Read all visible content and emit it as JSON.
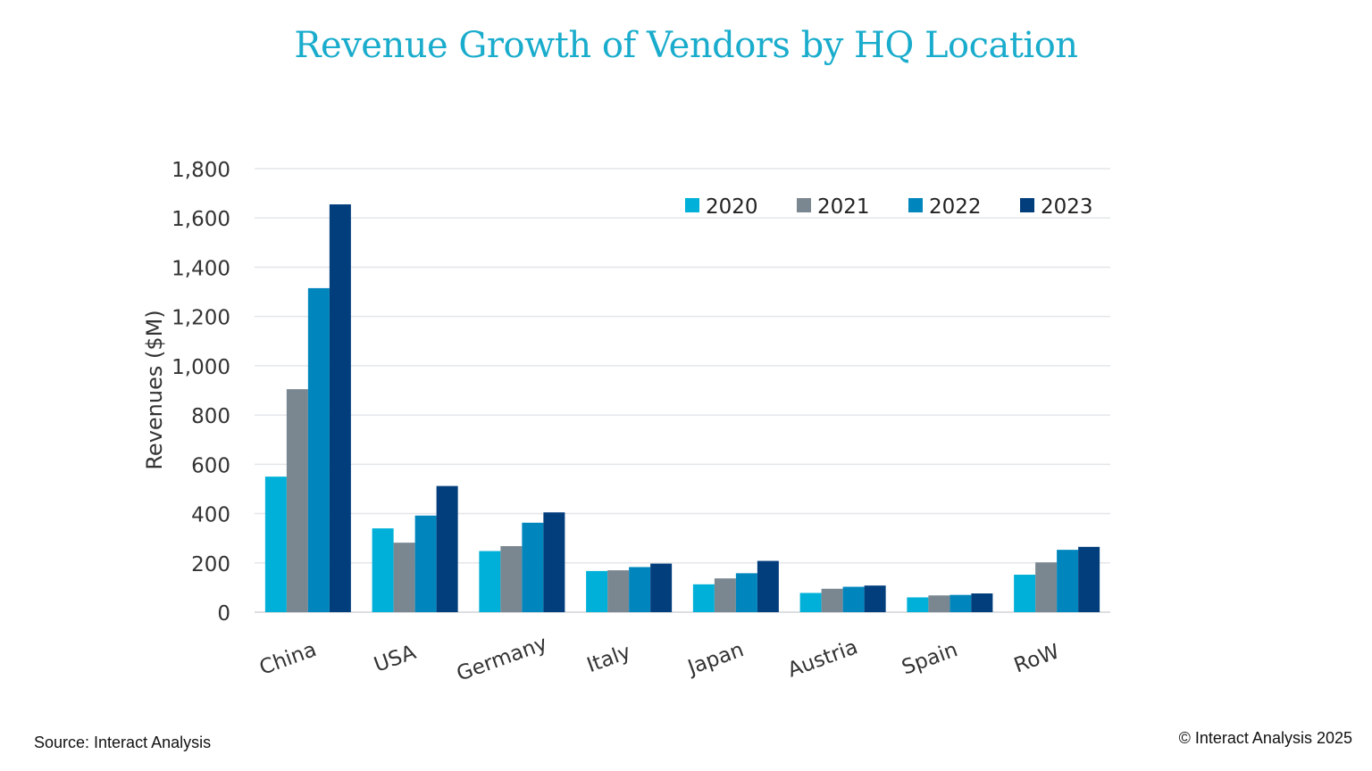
{
  "chart_data": {
    "type": "bar",
    "title": "Revenue Growth of Vendors by HQ Location",
    "ylabel": "Revenues ($M)",
    "xlabel": "",
    "ylim": [
      0,
      1800
    ],
    "yticks": [
      "1,800",
      "1,600",
      "1,400",
      "1,200",
      "1,000",
      "800",
      "600",
      "400",
      "200",
      "0"
    ],
    "grid": true,
    "legend_position": "top-right",
    "categories": [
      "China",
      "USA",
      "Germany",
      "Italy",
      "Japan",
      "Austria",
      "Spain",
      "RoW"
    ],
    "series": [
      {
        "name": "2020",
        "color": "#00b0d8",
        "values": [
          550,
          340,
          248,
          167,
          113,
          78,
          60,
          152
        ]
      },
      {
        "name": "2021",
        "color": "#7a8791",
        "values": [
          905,
          282,
          268,
          170,
          137,
          95,
          68,
          202
        ]
      },
      {
        "name": "2022",
        "color": "#0086bd",
        "values": [
          1315,
          392,
          363,
          183,
          158,
          103,
          70,
          253
        ]
      },
      {
        "name": "2023",
        "color": "#023d7c",
        "values": [
          1655,
          512,
          405,
          197,
          208,
          108,
          76,
          265
        ]
      }
    ]
  },
  "footer": {
    "source": "Source: Interact Analysis",
    "copyright": "© Interact Analysis 2025"
  }
}
